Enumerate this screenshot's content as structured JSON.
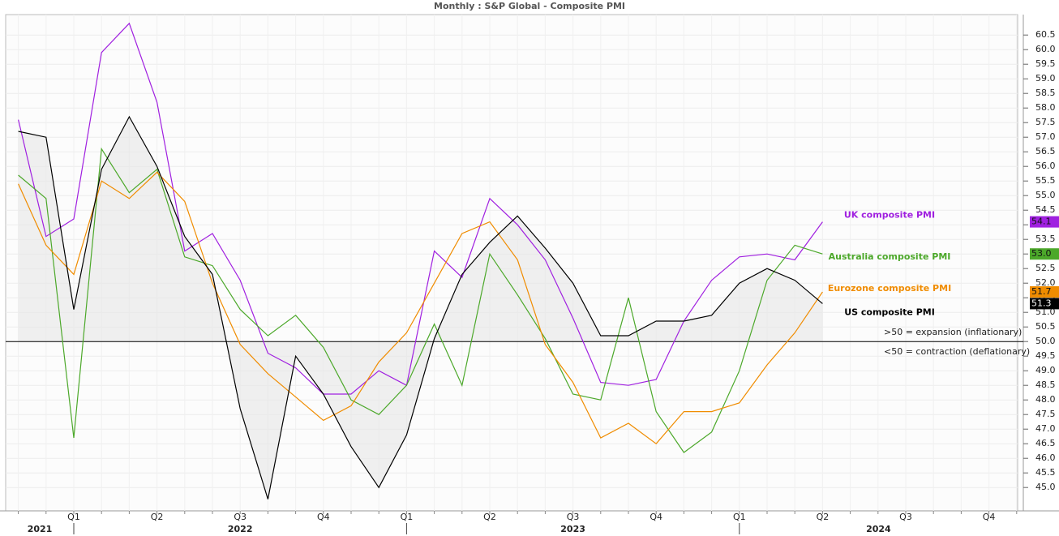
{
  "chart_data": {
    "type": "line",
    "title": "Monthly : S&P Global - Composite PMI",
    "categories": [
      null,
      null,
      "Q1",
      null,
      null,
      "Q2",
      null,
      null,
      "Q3",
      null,
      null,
      "Q4",
      null,
      null,
      "Q1",
      null,
      null,
      "Q2",
      null,
      null,
      "Q3",
      null,
      null,
      "Q4",
      null,
      null,
      "Q1",
      null,
      null,
      "Q2",
      null,
      null,
      "Q3",
      null,
      null,
      "Q4",
      null
    ],
    "years": [
      "2021",
      "2022",
      "2023",
      "2024"
    ],
    "series": [
      {
        "name": "UK composite PMI",
        "color": "#a020e0",
        "last_value_label": "54.1",
        "values": [
          57.6,
          53.6,
          54.2,
          59.9,
          60.9,
          58.2,
          53.1,
          53.7,
          52.1,
          49.6,
          49.1,
          48.2,
          48.2,
          49.0,
          48.5,
          53.1,
          52.2,
          54.9,
          54.0,
          52.8,
          50.8,
          48.6,
          48.5,
          48.7,
          50.7,
          52.1,
          52.9,
          53.0,
          52.8,
          54.1,
          null,
          null,
          null,
          null,
          null,
          null,
          null
        ]
      },
      {
        "name": "Australia composite PMI",
        "color": "#4ca82a",
        "last_value_label": "53.0",
        "values": [
          55.7,
          54.9,
          46.7,
          56.6,
          55.1,
          55.9,
          52.9,
          52.6,
          51.1,
          50.2,
          50.9,
          49.8,
          48.0,
          47.5,
          48.5,
          50.6,
          48.5,
          53.0,
          51.6,
          50.1,
          48.2,
          48.0,
          51.5,
          47.6,
          46.2,
          46.9,
          49.0,
          52.1,
          53.3,
          53.0,
          null,
          null,
          null,
          null,
          null,
          null,
          null
        ]
      },
      {
        "name": "Eurozone composite PMI",
        "color": "#f08c00",
        "last_value_label": "51.7",
        "values": [
          55.4,
          53.3,
          52.3,
          55.5,
          54.9,
          55.8,
          54.8,
          52.0,
          49.9,
          48.9,
          48.1,
          47.3,
          47.8,
          49.3,
          50.3,
          52.0,
          53.7,
          54.1,
          52.8,
          49.9,
          48.6,
          46.7,
          47.2,
          46.5,
          47.6,
          47.6,
          47.9,
          49.2,
          50.3,
          51.7,
          null,
          null,
          null,
          null,
          null,
          null,
          null
        ]
      },
      {
        "name": "US composite PMI",
        "color": "#000000",
        "last_value_label": "51.3",
        "values": [
          57.2,
          57.0,
          51.1,
          55.9,
          57.7,
          56.0,
          53.6,
          52.3,
          47.7,
          44.6,
          49.5,
          48.2,
          46.4,
          45.0,
          46.8,
          50.1,
          52.3,
          53.4,
          54.3,
          53.2,
          52.0,
          50.2,
          50.2,
          50.7,
          50.7,
          50.9,
          52.0,
          52.5,
          52.1,
          51.3,
          null,
          null,
          null,
          null,
          null,
          null,
          null
        ]
      }
    ],
    "reference_line": {
      "value": 50,
      "labels": [
        ">50 = expansion (inflationary)",
        "<50 = contraction (deflationary)"
      ]
    },
    "fill_series": 3,
    "ylim": [
      44.2,
      61.2
    ],
    "yticks": [
      {
        "value": 45,
        "label": "45.0"
      },
      45.5,
      {
        "value": 46,
        "label": "46.0"
      },
      46.5,
      {
        "value": 47,
        "label": "47.0"
      },
      47.5,
      {
        "value": 48,
        "label": "48.0"
      },
      48.5,
      {
        "value": 49,
        "label": "49.0"
      },
      49.5,
      {
        "value": 50,
        "label": "50.0"
      },
      50.5,
      {
        "value": 51,
        "label": "51.0"
      },
      51.5,
      {
        "value": 52,
        "label": "52.0"
      },
      52.5,
      {
        "value": 53,
        "label": "53.0"
      },
      53.5,
      {
        "value": 54,
        "label": "54.0"
      },
      54.5,
      {
        "value": 55,
        "label": "55.0"
      },
      55.5,
      {
        "value": 56,
        "label": "56.0"
      },
      56.5,
      {
        "value": 57,
        "label": "57.0"
      },
      57.5,
      {
        "value": 58,
        "label": "58.0"
      },
      58.5,
      {
        "value": 59,
        "label": "59.0"
      },
      59.5,
      {
        "value": 60,
        "label": "60.0"
      },
      60.5
    ],
    "grid": true
  }
}
